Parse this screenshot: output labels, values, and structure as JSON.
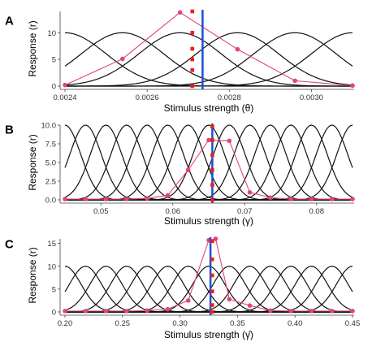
{
  "chart_data": [
    {
      "type": "line",
      "panel": "A",
      "xlabel": "Stimulus strength (θ)",
      "ylabel": "Response (r)",
      "xlim": [
        0.0024,
        0.0031
      ],
      "ylim": [
        0,
        14
      ],
      "xticks": [
        0.0024,
        0.0026,
        0.0028,
        0.003
      ],
      "xtick_labels": [
        "0.0024",
        "0.0026",
        "0.0028",
        "0.0030"
      ],
      "yticks": [
        0,
        5,
        10
      ],
      "ytick_labels": [
        "0",
        "5",
        "10"
      ],
      "tuning_curves": {
        "centers": [
          0.0024,
          0.00254,
          0.00268,
          0.00282,
          0.00296,
          0.0031
        ],
        "amplitude": 10,
        "width": 0.0001
      },
      "population_response": {
        "x": [
          0.0024,
          0.00254,
          0.00268,
          0.00282,
          0.00296,
          0.0031
        ],
        "y": [
          0.2,
          5.1,
          13.8,
          6.9,
          1.0,
          0.1
        ]
      },
      "red_markers": {
        "x": 0.00271,
        "y": [
          14.0,
          10.0,
          7.0,
          5.0,
          3.0,
          0.0
        ]
      },
      "stimulus_marker": 0.002735
    },
    {
      "type": "line",
      "panel": "B",
      "xlabel": "Stimulus strength (γ)",
      "ylabel": "Response (r)",
      "xlim": [
        0.045,
        0.085
      ],
      "ylim": [
        0,
        10
      ],
      "xticks": [
        0.05,
        0.06,
        0.07,
        0.08
      ],
      "xtick_labels": [
        "0.05",
        "0.06",
        "0.07",
        "0.08"
      ],
      "yticks": [
        0.0,
        2.5,
        5.0,
        7.5,
        10.0
      ],
      "ytick_labels": [
        "0.0",
        "2.5",
        "5.0",
        "7.5",
        "10.0"
      ],
      "tuning_curves": {
        "centers": [
          0.045,
          0.04786,
          0.05071,
          0.05357,
          0.05643,
          0.05929,
          0.06214,
          0.065,
          0.06786,
          0.07071,
          0.07357,
          0.07643,
          0.07929,
          0.08214,
          0.085
        ],
        "amplitude": 10,
        "width": 0.0022
      },
      "population_response": {
        "x": [
          0.045,
          0.04786,
          0.05071,
          0.05357,
          0.05643,
          0.05929,
          0.06214,
          0.065,
          0.06786,
          0.07071,
          0.07357,
          0.07643,
          0.07929,
          0.08214,
          0.085
        ],
        "y": [
          0.1,
          0.1,
          0.1,
          0.1,
          0.2,
          0.6,
          4.0,
          8.0,
          7.9,
          1.0,
          0.3,
          0.1,
          0.1,
          0.1,
          0.1
        ]
      },
      "red_markers": {
        "x": 0.0655,
        "y": [
          9.8,
          8.0,
          6.0,
          4.0,
          2.0,
          0.0
        ]
      },
      "stimulus_marker": 0.0655
    },
    {
      "type": "line",
      "panel": "C",
      "xlabel": "Stimulus strength (γ̂)",
      "ylabel": "Response (r)",
      "xlim": [
        0.2,
        0.45
      ],
      "ylim": [
        0,
        16
      ],
      "xticks": [
        0.2,
        0.25,
        0.3,
        0.35,
        0.4,
        0.45
      ],
      "xtick_labels": [
        "0.20",
        "0.25",
        "0.30",
        "0.35",
        "0.40",
        "0.45"
      ],
      "yticks": [
        0,
        5,
        10,
        15
      ],
      "ytick_labels": [
        "0",
        "5",
        "10",
        "15"
      ],
      "tuning_curves": {
        "centers": [
          0.2,
          0.21786,
          0.23571,
          0.25357,
          0.27143,
          0.28929,
          0.30714,
          0.325,
          0.34286,
          0.36071,
          0.37857,
          0.39643,
          0.41429,
          0.43214,
          0.45
        ],
        "amplitude": 10,
        "width": 0.014
      },
      "population_response": {
        "x": [
          0.2,
          0.21786,
          0.23571,
          0.25357,
          0.27143,
          0.28929,
          0.30714,
          0.325,
          0.331,
          0.34286,
          0.36071,
          0.37857,
          0.39643,
          0.41429,
          0.43214,
          0.45
        ],
        "y": [
          0.2,
          0.2,
          0.2,
          0.2,
          0.3,
          0.6,
          2.5,
          15.7,
          16.0,
          2.8,
          1.4,
          0.3,
          0.2,
          0.2,
          0.2,
          0.2
        ]
      },
      "red_markers": {
        "x": 0.328,
        "y": [
          15.5,
          11.5,
          8.0,
          4.5,
          1.5,
          0.0
        ]
      },
      "stimulus_marker": 0.3265
    }
  ],
  "colors": {
    "tuning": "#111111",
    "population": "#e0457b",
    "red_markers": "#e8201a",
    "stimulus_line": "#1f4fd6"
  }
}
